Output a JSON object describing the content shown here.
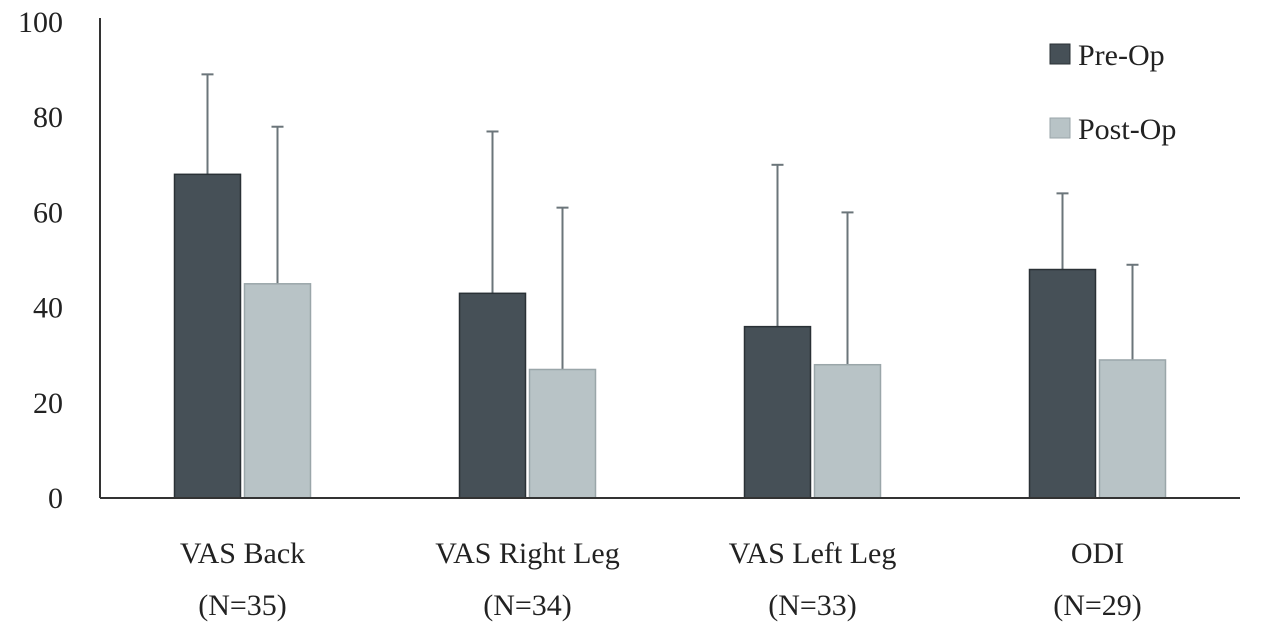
{
  "chart_data": {
    "type": "bar",
    "categories": [
      [
        "VAS Back",
        "(N=35)"
      ],
      [
        "VAS Right Leg",
        "(N=34)"
      ],
      [
        "VAS Left Leg",
        "(N=33)"
      ],
      [
        "ODI",
        "(N=29)"
      ]
    ],
    "series": [
      {
        "name": "Pre-Op",
        "color": "#465057",
        "values": [
          68,
          43,
          36,
          48
        ],
        "error_upper": [
          89,
          77,
          70,
          64
        ]
      },
      {
        "name": "Post-Op",
        "color": "#b8c3c6",
        "values": [
          45,
          27,
          28,
          29
        ],
        "error_upper": [
          78,
          61,
          60,
          49
        ]
      }
    ],
    "yticks": [
      "0",
      "20",
      "40",
      "60",
      "80",
      "100"
    ],
    "ylim": [
      0,
      100
    ],
    "title": "",
    "xlabel": "",
    "ylabel": "",
    "legend_position": "top-right",
    "grid": false
  }
}
